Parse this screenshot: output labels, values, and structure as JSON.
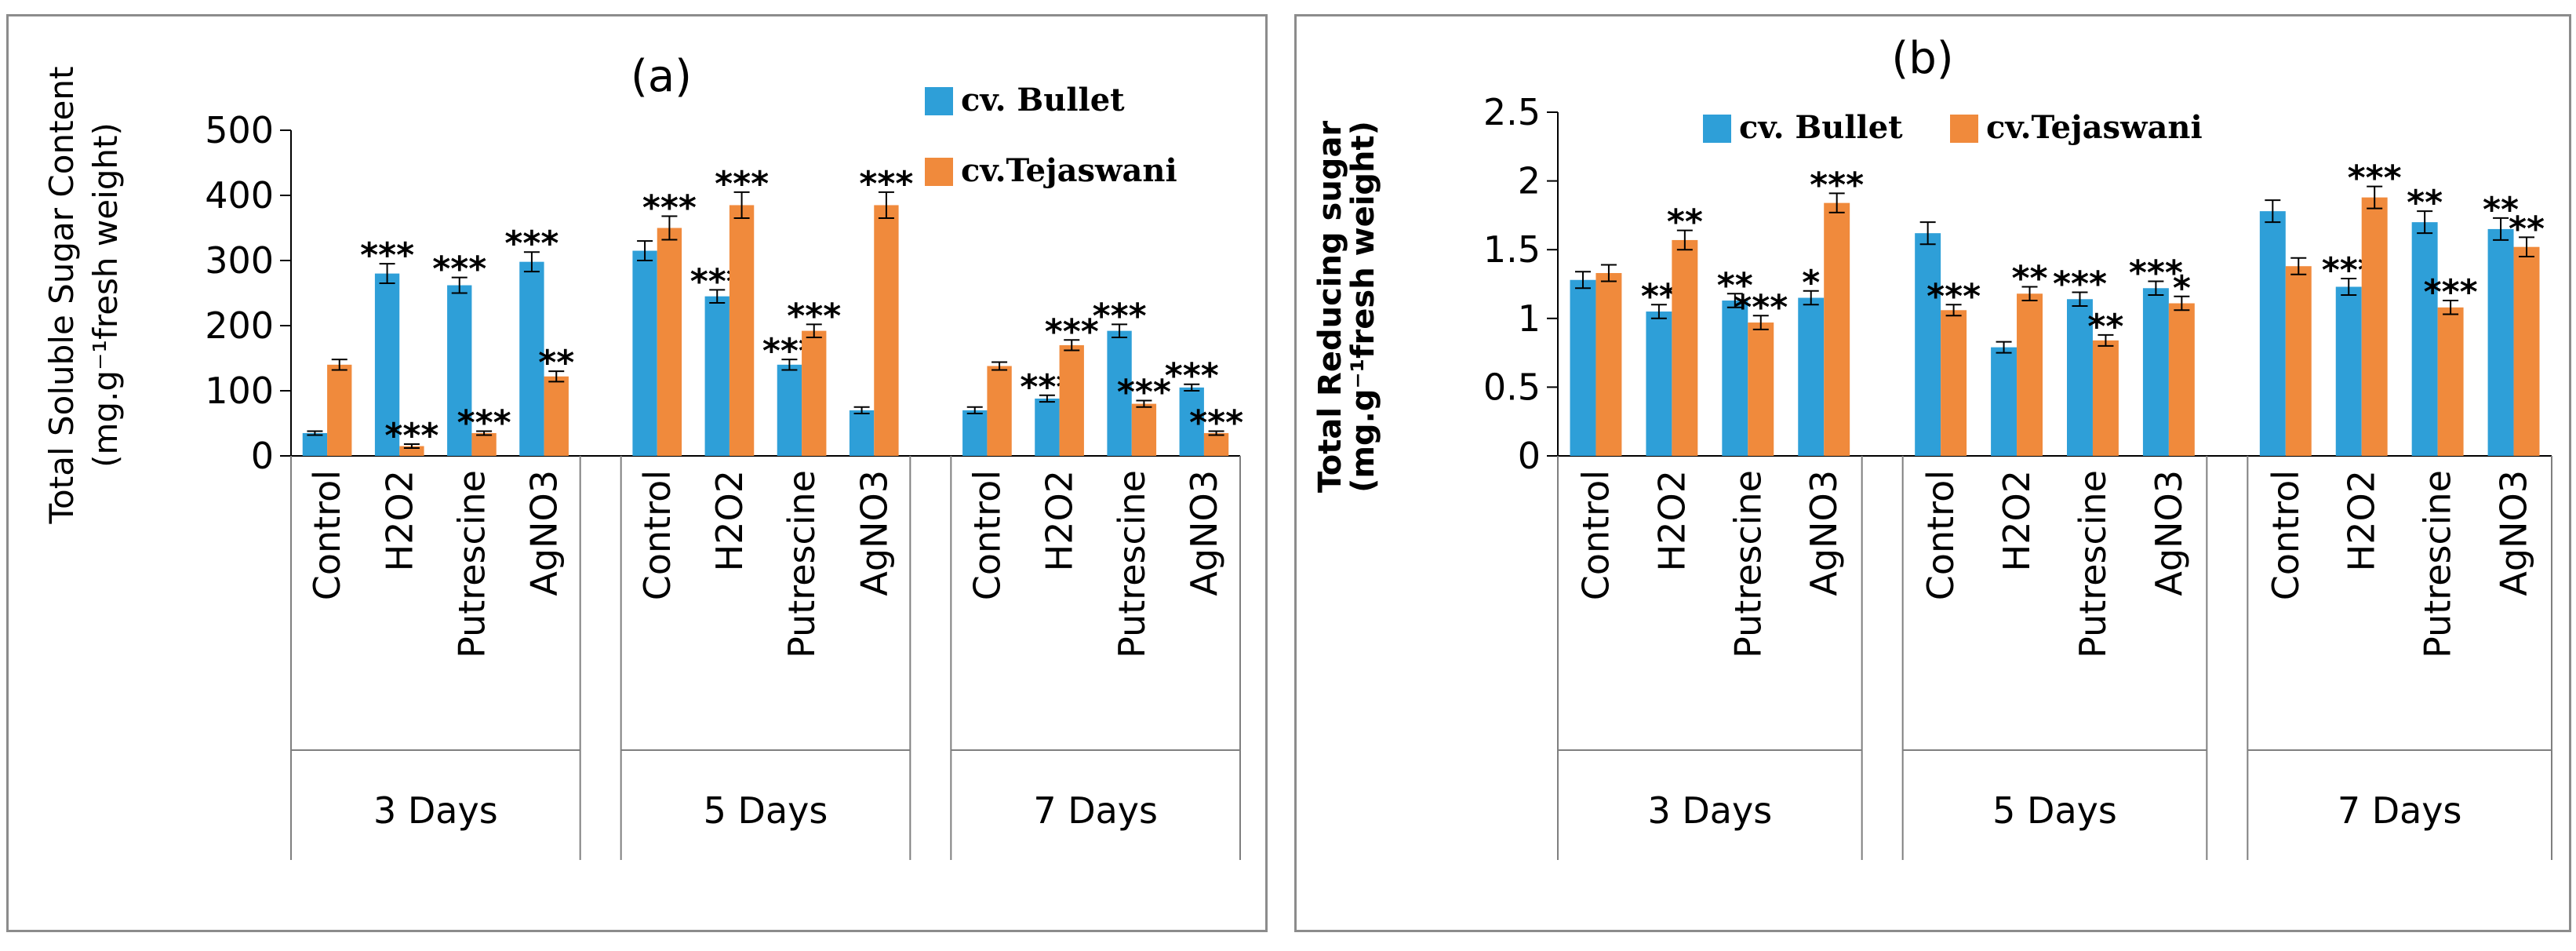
{
  "colors": {
    "bullet": "#2e9fd8",
    "tejaswani": "#f08a3c",
    "axis": "#000000",
    "frame": "#8c8c8c"
  },
  "chart_data": [
    {
      "type": "bar",
      "title": "(a)",
      "ylabel_line1": "Total Soluble Sugar Content",
      "ylabel_line2": "(mg.g⁻¹fresh weight)",
      "ylim": [
        0,
        500
      ],
      "yticks": [
        "0",
        "100",
        "200",
        "300",
        "400",
        "500"
      ],
      "ytick_values": [
        0,
        100,
        200,
        300,
        400,
        500
      ],
      "legend_position": "top-right",
      "groups": [
        "3 Days",
        "5 Days",
        "7 Days"
      ],
      "categories": [
        "Control",
        "H2O2",
        "Putrescine",
        "AgNO3"
      ],
      "series": [
        {
          "name": "cv. Bullet",
          "values": [
            [
              35,
              280,
              262,
              298
            ],
            [
              315,
              245,
              140,
              70
            ],
            [
              70,
              88,
              192,
              105
            ]
          ],
          "errors": [
            [
              3,
              15,
              12,
              15
            ],
            [
              15,
              10,
              8,
              5
            ],
            [
              5,
              5,
              10,
              5
            ]
          ]
        },
        {
          "name": "cv.Tejaswani",
          "values": [
            [
              140,
              15,
              35,
              122
            ],
            [
              350,
              385,
              192,
              385
            ],
            [
              138,
              170,
              80,
              35
            ]
          ],
          "errors": [
            [
              8,
              3,
              3,
              8
            ],
            [
              18,
              20,
              10,
              20
            ],
            [
              6,
              8,
              5,
              3
            ]
          ]
        }
      ],
      "significance": [
        {
          "label": "***",
          "group": 1,
          "category": 1,
          "series": 0
        },
        {
          "label": "***",
          "group": 1,
          "category": 2,
          "series": 0
        },
        {
          "label": "***",
          "group": 1,
          "category": 3,
          "series": 0
        },
        {
          "label": "***",
          "group": 1,
          "category": 1,
          "series": 1
        },
        {
          "label": "***",
          "group": 1,
          "category": 2,
          "series": 1
        },
        {
          "label": "**",
          "group": 1,
          "category": 3,
          "series": 1
        },
        {
          "label": "***",
          "group": 2,
          "category": 0,
          "series": 1
        },
        {
          "label": "***",
          "group": 2,
          "category": 1,
          "series": 0
        },
        {
          "label": "***",
          "group": 2,
          "category": 1,
          "series": 1
        },
        {
          "label": "***",
          "group": 2,
          "category": 2,
          "series": 0
        },
        {
          "label": "***",
          "group": 2,
          "category": 2,
          "series": 1
        },
        {
          "label": "***",
          "group": 2,
          "category": 3,
          "series": 1
        },
        {
          "label": "***",
          "group": 3,
          "category": 1,
          "series": 0
        },
        {
          "label": "***",
          "group": 3,
          "category": 1,
          "series": 1
        },
        {
          "label": "***",
          "group": 3,
          "category": 2,
          "series": 0
        },
        {
          "label": "***",
          "group": 3,
          "category": 2,
          "series": 1
        },
        {
          "label": "***",
          "group": 3,
          "category": 3,
          "series": 0
        },
        {
          "label": "***",
          "group": 3,
          "category": 3,
          "series": 1
        }
      ]
    },
    {
      "type": "bar",
      "title": "(b)",
      "ylabel_line1": "Total Reducing sugar",
      "ylabel_line2": "(mg.g⁻¹fresh weight)",
      "ylim": [
        0,
        2.5
      ],
      "yticks": [
        "0",
        "0.5",
        "1",
        "1.5",
        "2",
        "2.5"
      ],
      "ytick_values": [
        0,
        0.5,
        1,
        1.5,
        2,
        2.5
      ],
      "legend_position": "top-center",
      "groups": [
        "3 Days",
        "5 Days",
        "7 Days"
      ],
      "categories": [
        "Control",
        "H2O2",
        "Putrescine",
        "AgNO3"
      ],
      "series": [
        {
          "name": "cv. Bullet",
          "values": [
            [
              1.28,
              1.05,
              1.13,
              1.15
            ],
            [
              1.62,
              0.79,
              1.14,
              1.22
            ],
            [
              1.78,
              1.23,
              1.7,
              1.65
            ]
          ],
          "errors": [
            [
              0.06,
              0.05,
              0.05,
              0.05
            ],
            [
              0.08,
              0.04,
              0.05,
              0.05
            ],
            [
              0.08,
              0.06,
              0.08,
              0.08
            ]
          ]
        },
        {
          "name": "cv.Tejaswani",
          "values": [
            [
              1.33,
              1.57,
              0.97,
              1.84
            ],
            [
              1.06,
              1.18,
              0.84,
              1.11
            ],
            [
              1.38,
              1.88,
              1.08,
              1.52
            ]
          ],
          "errors": [
            [
              0.06,
              0.07,
              0.05,
              0.07
            ],
            [
              0.04,
              0.05,
              0.04,
              0.05
            ],
            [
              0.06,
              0.08,
              0.05,
              0.07
            ]
          ]
        }
      ],
      "significance": [
        {
          "label": "**",
          "group": 1,
          "category": 1,
          "series": 0
        },
        {
          "label": "**",
          "group": 1,
          "category": 1,
          "series": 1
        },
        {
          "label": "**",
          "group": 1,
          "category": 2,
          "series": 0
        },
        {
          "label": "***",
          "group": 1,
          "category": 2,
          "series": 1
        },
        {
          "label": "*",
          "group": 1,
          "category": 3,
          "series": 0
        },
        {
          "label": "***",
          "group": 1,
          "category": 3,
          "series": 1
        },
        {
          "label": "***",
          "group": 2,
          "category": 0,
          "series": 1
        },
        {
          "label": "**",
          "group": 2,
          "category": 1,
          "series": 1
        },
        {
          "label": "***",
          "group": 2,
          "category": 2,
          "series": 0
        },
        {
          "label": "**",
          "group": 2,
          "category": 2,
          "series": 1
        },
        {
          "label": "***",
          "group": 2,
          "category": 3,
          "series": 0
        },
        {
          "label": "*",
          "group": 2,
          "category": 3,
          "series": 1
        },
        {
          "label": "***",
          "group": 3,
          "category": 1,
          "series": 0
        },
        {
          "label": "***",
          "group": 3,
          "category": 1,
          "series": 1
        },
        {
          "label": "**",
          "group": 3,
          "category": 2,
          "series": 0
        },
        {
          "label": "***",
          "group": 3,
          "category": 2,
          "series": 1
        },
        {
          "label": "**",
          "group": 3,
          "category": 3,
          "series": 0
        },
        {
          "label": "**",
          "group": 3,
          "category": 3,
          "series": 1
        }
      ]
    }
  ]
}
